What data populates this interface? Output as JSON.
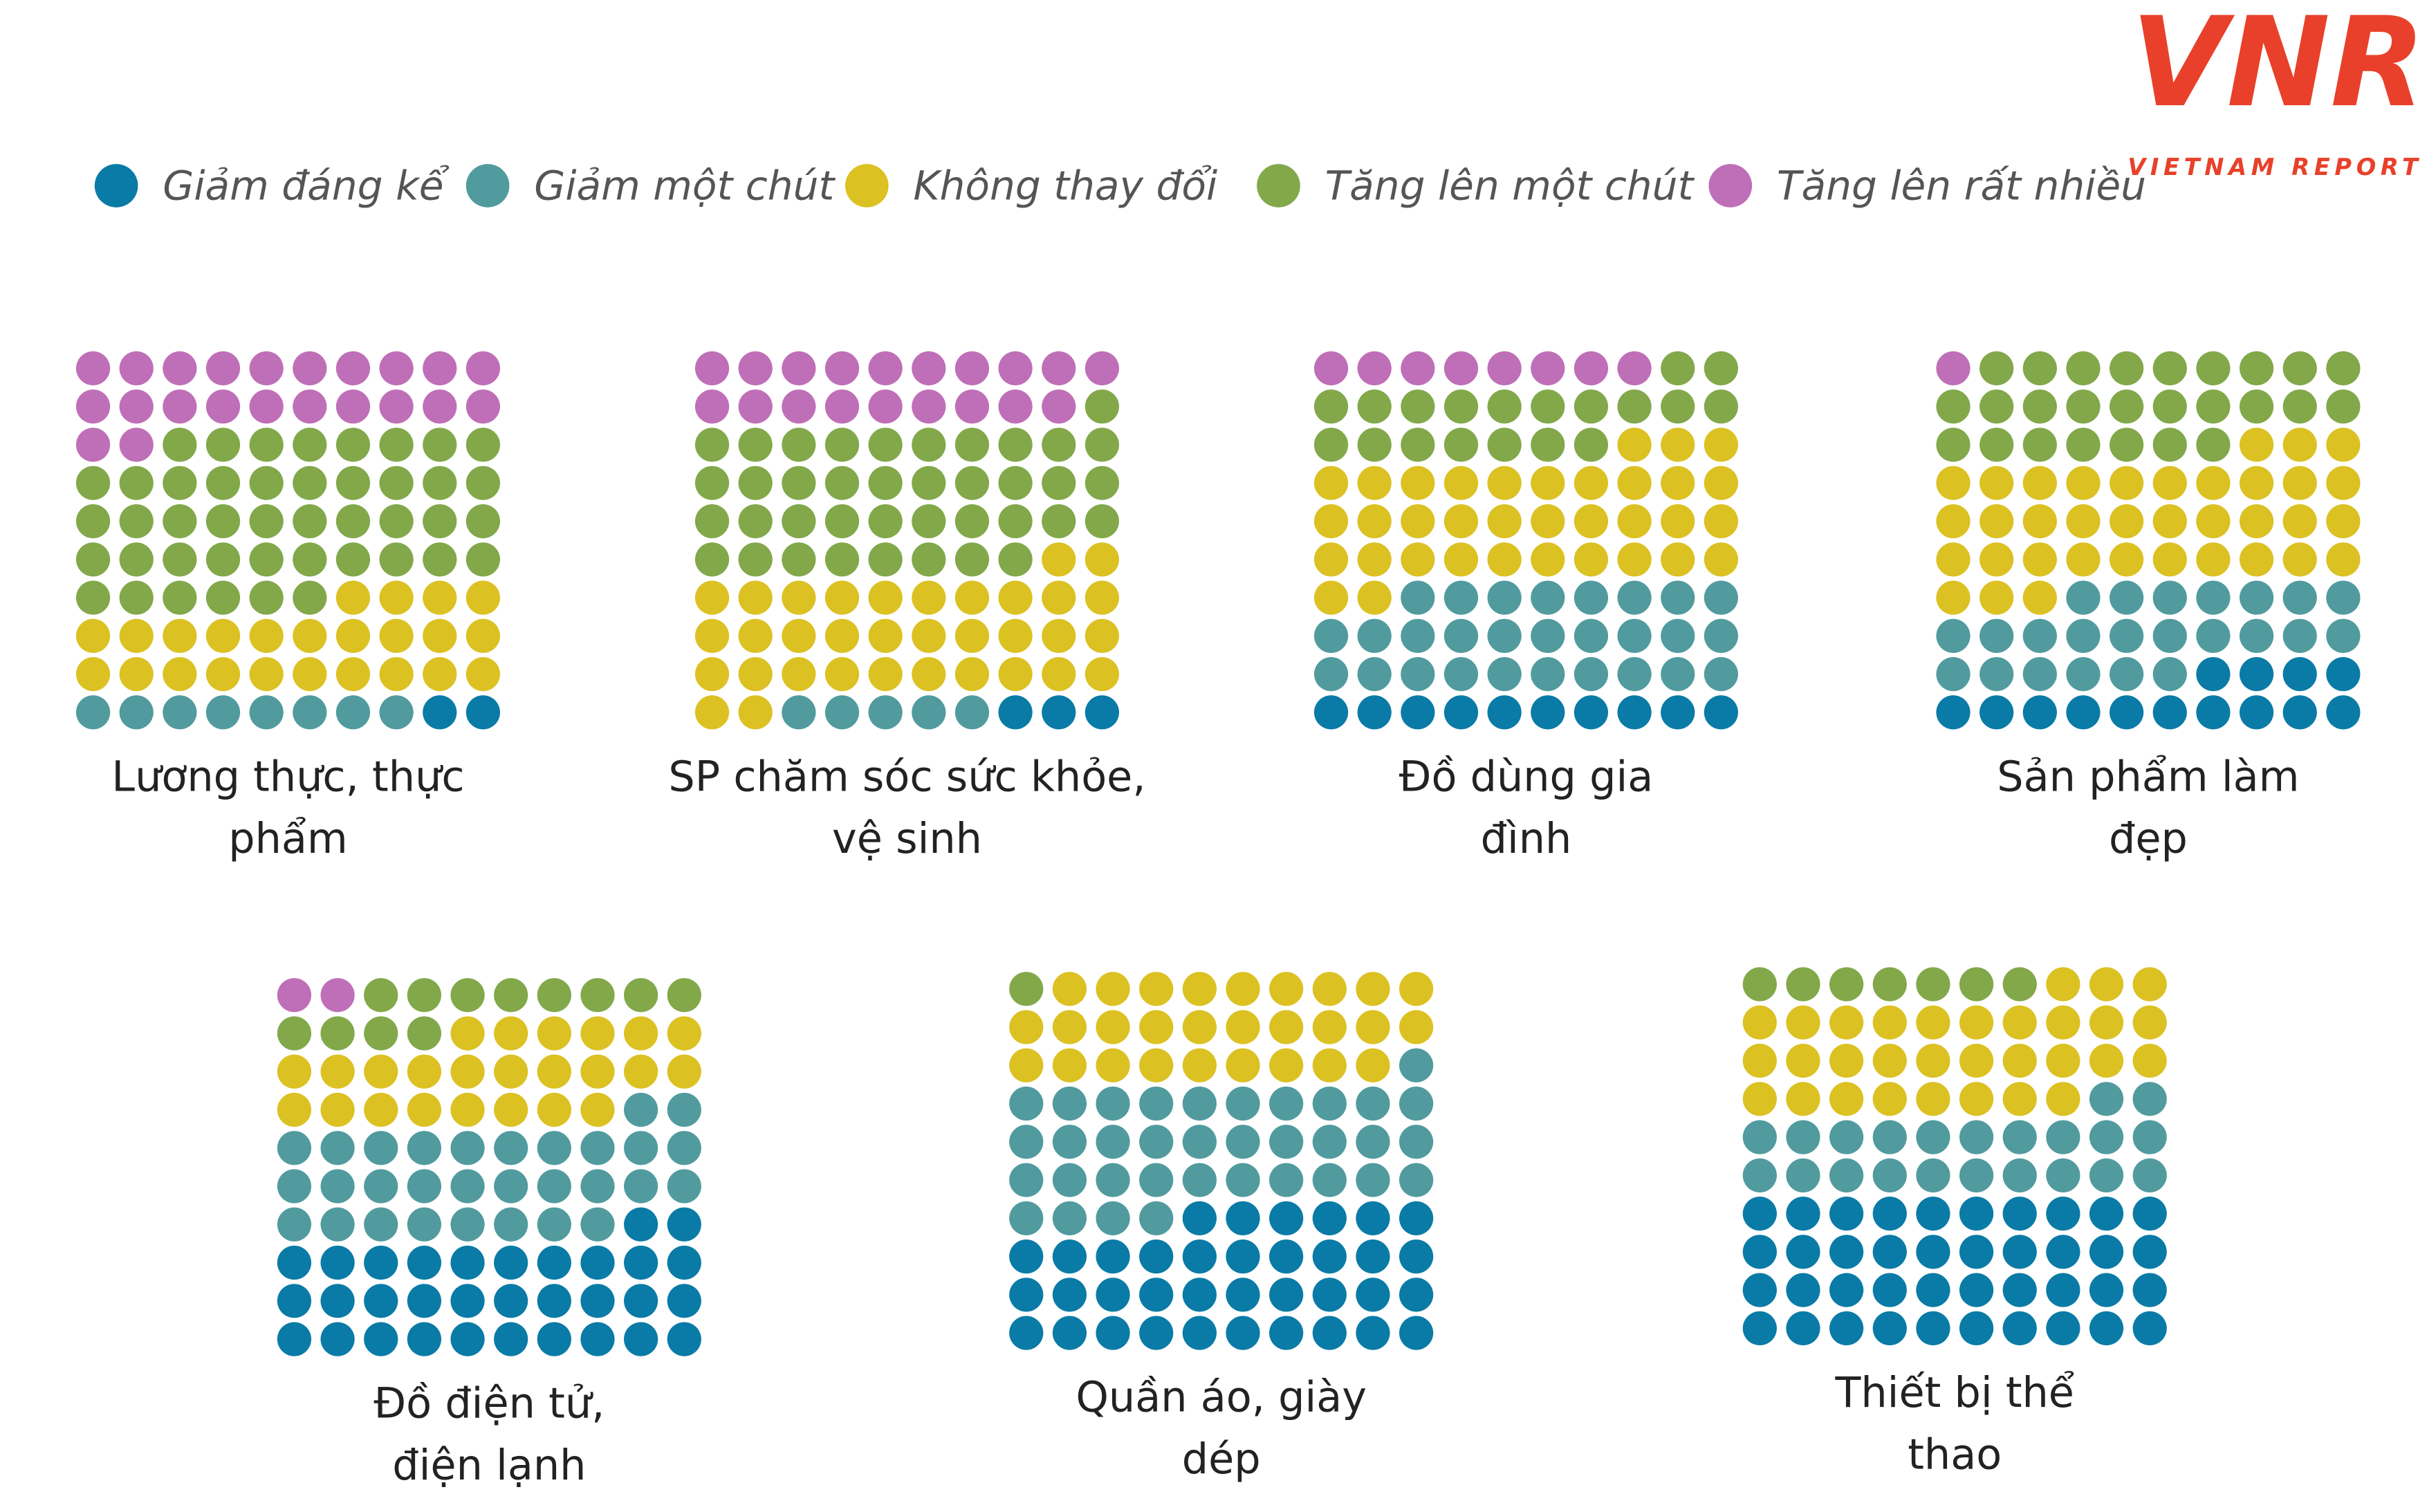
{
  "logo": {
    "mark": "VNR",
    "name": "VIETNAM REPORT"
  },
  "chart_data": {
    "type": "waffle",
    "categories": [
      "Lương thực, thực phẩm",
      "SP chăm sóc sức khỏe, vệ sinh",
      "Đồ dùng gia đình",
      "Sản phẩm làm đẹp",
      "Đồ điện tử, điện lạnh",
      "Quần áo, giày dép",
      "Thiết bị thể thao"
    ],
    "series": [
      {
        "name": "Giảm đáng kể",
        "color": "#0a7ba6",
        "values": [
          2,
          3,
          10,
          14,
          32,
          36,
          40
        ]
      },
      {
        "name": "Giảm một chút",
        "color": "#519b9f",
        "values": [
          8,
          5,
          28,
          23,
          30,
          35,
          22
        ]
      },
      {
        "name": "Không thay đổi",
        "color": "#dcc122",
        "values": [
          24,
          34,
          35,
          36,
          24,
          28,
          31
        ]
      },
      {
        "name": "Tăng lên một chút",
        "color": "#82a84a",
        "values": [
          44,
          39,
          19,
          26,
          12,
          1,
          7
        ]
      },
      {
        "name": "Tăng lên rất nhiều",
        "color": "#bf6fb7",
        "values": [
          22,
          19,
          8,
          1,
          2,
          0,
          0
        ]
      }
    ]
  }
}
